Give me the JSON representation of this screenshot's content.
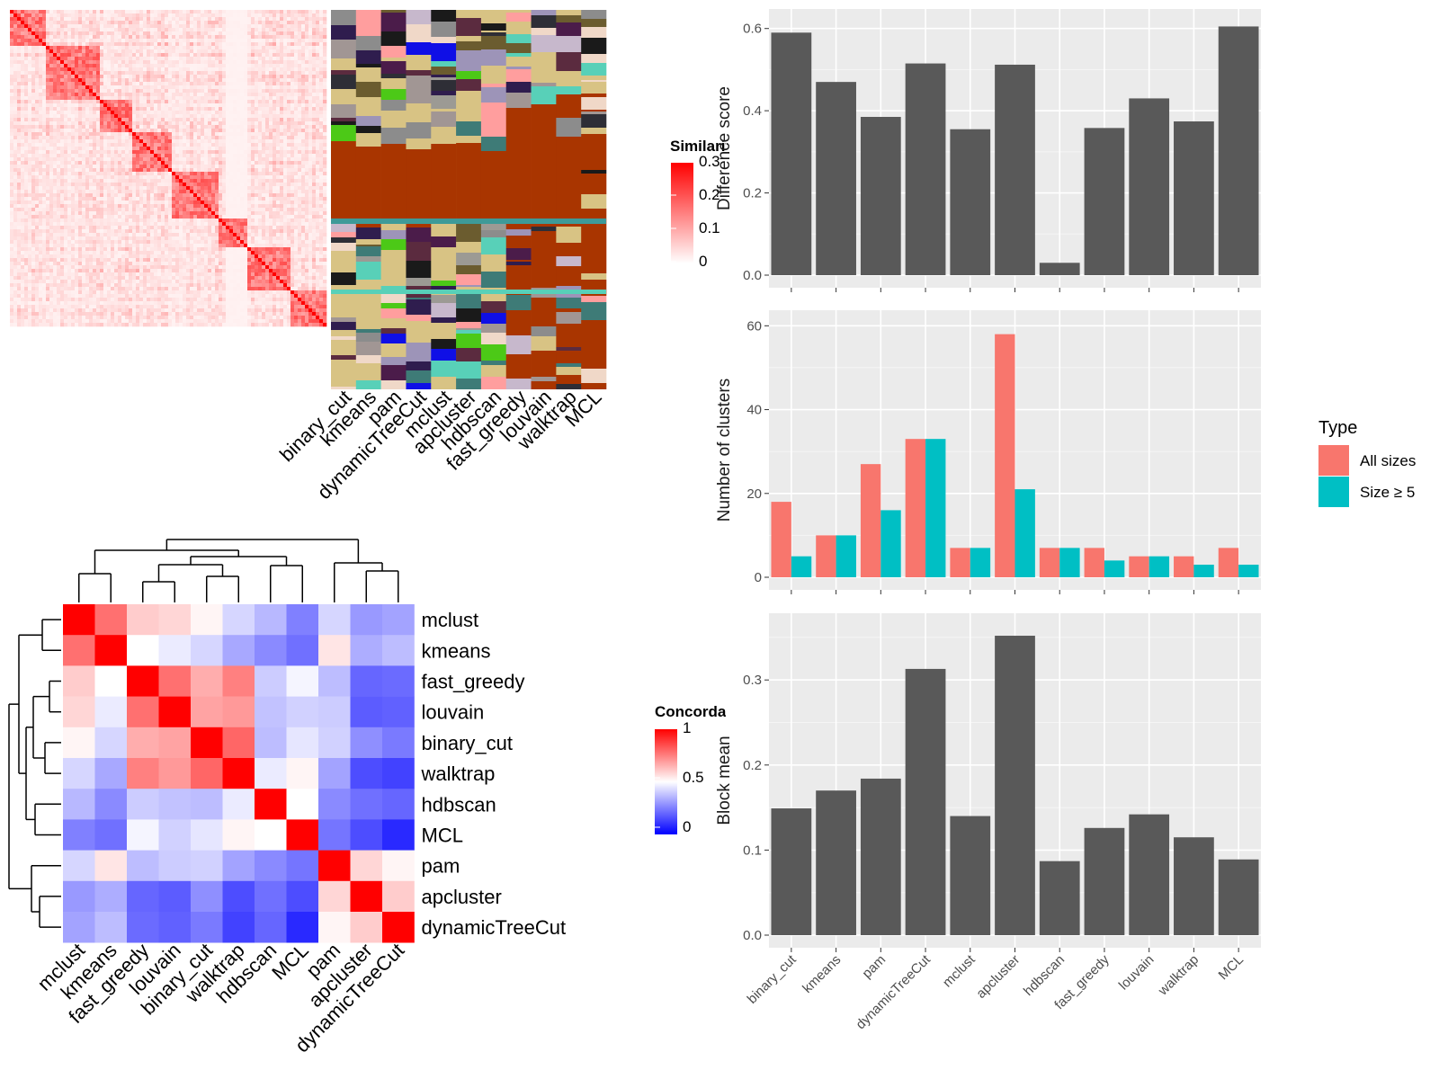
{
  "methods_order": [
    "binary_cut",
    "kmeans",
    "pam",
    "dynamicTreeCut",
    "mclust",
    "apcluster",
    "hdbscan",
    "fast_greedy",
    "louvain",
    "walktrap",
    "MCL"
  ],
  "similarity_heatmap": {
    "legend_title": "Similarity",
    "legend_ticks": [
      "0.3",
      "0.2",
      "0.1",
      "0"
    ],
    "low_color": "#ffffff",
    "high_color": "#ff0000"
  },
  "class_matrix": {
    "columns": [
      "binary_cut",
      "kmeans",
      "pam",
      "dynamicTreeCut",
      "mclust",
      "apcluster",
      "hdbscan",
      "fast_greedy",
      "louvain",
      "walktrap",
      "MCL"
    ],
    "background_color": "#d8c384",
    "main_cluster_color": "#a93500"
  },
  "concordance": {
    "legend_title": "Concordance",
    "legend_ticks": [
      "1",
      "0.5",
      "0"
    ],
    "low_color": "#0000ff",
    "mid_color": "#ffffff",
    "high_color": "#ff0000",
    "labels": [
      "mclust",
      "kmeans",
      "fast_greedy",
      "louvain",
      "binary_cut",
      "walktrap",
      "hdbscan",
      "MCL",
      "pam",
      "apcluster",
      "dynamicTreeCut"
    ],
    "matrix": [
      [
        1.0,
        0.78,
        0.6,
        0.58,
        0.52,
        0.42,
        0.36,
        0.25,
        0.42,
        0.3,
        0.32
      ],
      [
        0.78,
        1.0,
        0.5,
        0.46,
        0.42,
        0.33,
        0.27,
        0.22,
        0.55,
        0.34,
        0.37
      ],
      [
        0.6,
        0.5,
        1.0,
        0.78,
        0.66,
        0.75,
        0.4,
        0.48,
        0.37,
        0.2,
        0.21
      ],
      [
        0.58,
        0.46,
        0.78,
        1.0,
        0.68,
        0.7,
        0.38,
        0.41,
        0.4,
        0.18,
        0.19
      ],
      [
        0.52,
        0.42,
        0.66,
        0.68,
        1.0,
        0.8,
        0.37,
        0.45,
        0.41,
        0.28,
        0.24
      ],
      [
        0.42,
        0.33,
        0.75,
        0.7,
        0.8,
        1.0,
        0.46,
        0.52,
        0.32,
        0.15,
        0.13
      ],
      [
        0.36,
        0.27,
        0.4,
        0.38,
        0.37,
        0.46,
        1.0,
        0.5,
        0.27,
        0.22,
        0.2
      ],
      [
        0.25,
        0.22,
        0.48,
        0.41,
        0.45,
        0.52,
        0.5,
        1.0,
        0.23,
        0.15,
        0.08
      ],
      [
        0.42,
        0.55,
        0.37,
        0.4,
        0.41,
        0.32,
        0.27,
        0.23,
        1.0,
        0.58,
        0.52
      ],
      [
        0.3,
        0.34,
        0.2,
        0.18,
        0.28,
        0.15,
        0.22,
        0.15,
        0.58,
        1.0,
        0.6
      ],
      [
        0.32,
        0.37,
        0.21,
        0.19,
        0.24,
        0.13,
        0.2,
        0.08,
        0.52,
        0.6,
        1.0
      ]
    ]
  },
  "chart_data": [
    {
      "type": "bar",
      "categories": [
        "binary_cut",
        "kmeans",
        "pam",
        "dynamicTreeCut",
        "mclust",
        "apcluster",
        "hdbscan",
        "fast_greedy",
        "louvain",
        "walktrap",
        "MCL"
      ],
      "values": [
        0.59,
        0.47,
        0.385,
        0.515,
        0.355,
        0.512,
        0.03,
        0.358,
        0.43,
        0.374,
        0.605
      ],
      "ylabel": "Difference score",
      "ylim": [
        0,
        0.63
      ],
      "yticks": [
        "0.0",
        "0.2",
        "0.4",
        "0.6"
      ],
      "bar_color": "#595959"
    },
    {
      "type": "bar",
      "categories": [
        "binary_cut",
        "kmeans",
        "pam",
        "dynamicTreeCut",
        "mclust",
        "apcluster",
        "hdbscan",
        "fast_greedy",
        "louvain",
        "walktrap",
        "MCL"
      ],
      "series": [
        {
          "name": "All sizes",
          "color": "#f8766d",
          "values": [
            18,
            10,
            27,
            33,
            7,
            58,
            7,
            7,
            5,
            5,
            7
          ]
        },
        {
          "name": "Size ≥ 5",
          "color": "#00bfc4",
          "values": [
            5,
            10,
            16,
            33,
            7,
            21,
            7,
            4,
            5,
            3,
            3
          ]
        }
      ],
      "ylabel": "Number of clusters",
      "ylim": [
        0,
        62
      ],
      "yticks": [
        "0",
        "20",
        "40",
        "60"
      ],
      "legend_title": "Type",
      "legend_position": "right"
    },
    {
      "type": "bar",
      "categories": [
        "binary_cut",
        "kmeans",
        "pam",
        "dynamicTreeCut",
        "mclust",
        "apcluster",
        "hdbscan",
        "fast_greedy",
        "louvain",
        "walktrap",
        "MCL"
      ],
      "values": [
        0.149,
        0.17,
        0.184,
        0.313,
        0.14,
        0.352,
        0.087,
        0.126,
        0.142,
        0.115,
        0.089
      ],
      "ylabel": "Block mean",
      "ylim": [
        0,
        0.37
      ],
      "yticks": [
        "0.0",
        "0.1",
        "0.2",
        "0.3"
      ],
      "bar_color": "#595959"
    }
  ]
}
